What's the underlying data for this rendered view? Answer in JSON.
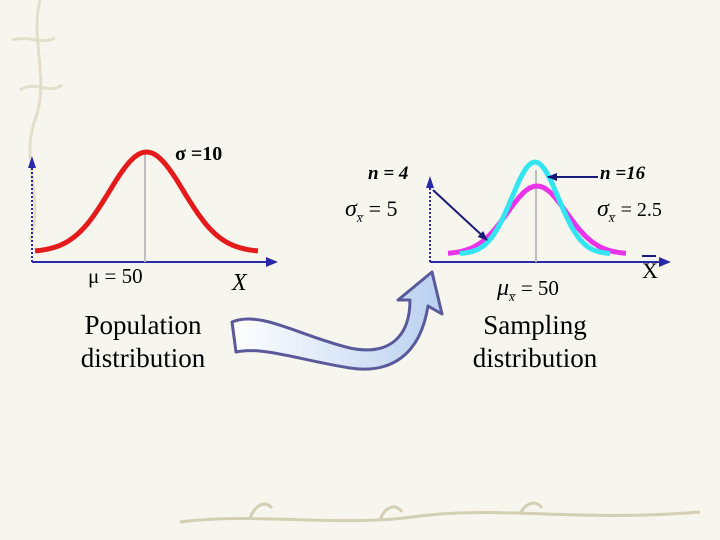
{
  "population": {
    "sigma_label": "σ =10",
    "mu_label": "μ = 50",
    "axis_label": "X",
    "caption_line1": "Population",
    "caption_line2": "distribution"
  },
  "sampling": {
    "n4_label": "n = 4",
    "n16_label": "n =16",
    "sigma_n4": "σx̅ = 5",
    "sigma_n4_symbol": "σ",
    "sigma_n4_sub": "x̅",
    "sigma_n4_value": "= 5",
    "sigma_n16_symbol": "σ",
    "sigma_n16_sub": "x̅",
    "sigma_n16_value": "= 2.5",
    "mu_symbol": "μ",
    "mu_sub": "x̅",
    "mu_value": "= 50",
    "axis_label": "X",
    "caption_line1": "Sampling",
    "caption_line2": "distribution"
  },
  "colors": {
    "population_curve": "#e51a1a",
    "n4_curve": "#e833e8",
    "n16_curve": "#33e5f0",
    "axis": "#2a2aa8",
    "arrow_fill": "#c9dbf3"
  },
  "chart_data": [
    {
      "type": "line",
      "title": "Population distribution",
      "xlabel": "X",
      "series": [
        {
          "name": "σ =10",
          "mean": 50,
          "sd": 10
        }
      ]
    },
    {
      "type": "line",
      "title": "Sampling distribution",
      "xlabel": "X",
      "series": [
        {
          "name": "n = 4",
          "mean": 50,
          "sd": 5
        },
        {
          "name": "n =16",
          "mean": 50,
          "sd": 2.5
        }
      ]
    }
  ]
}
